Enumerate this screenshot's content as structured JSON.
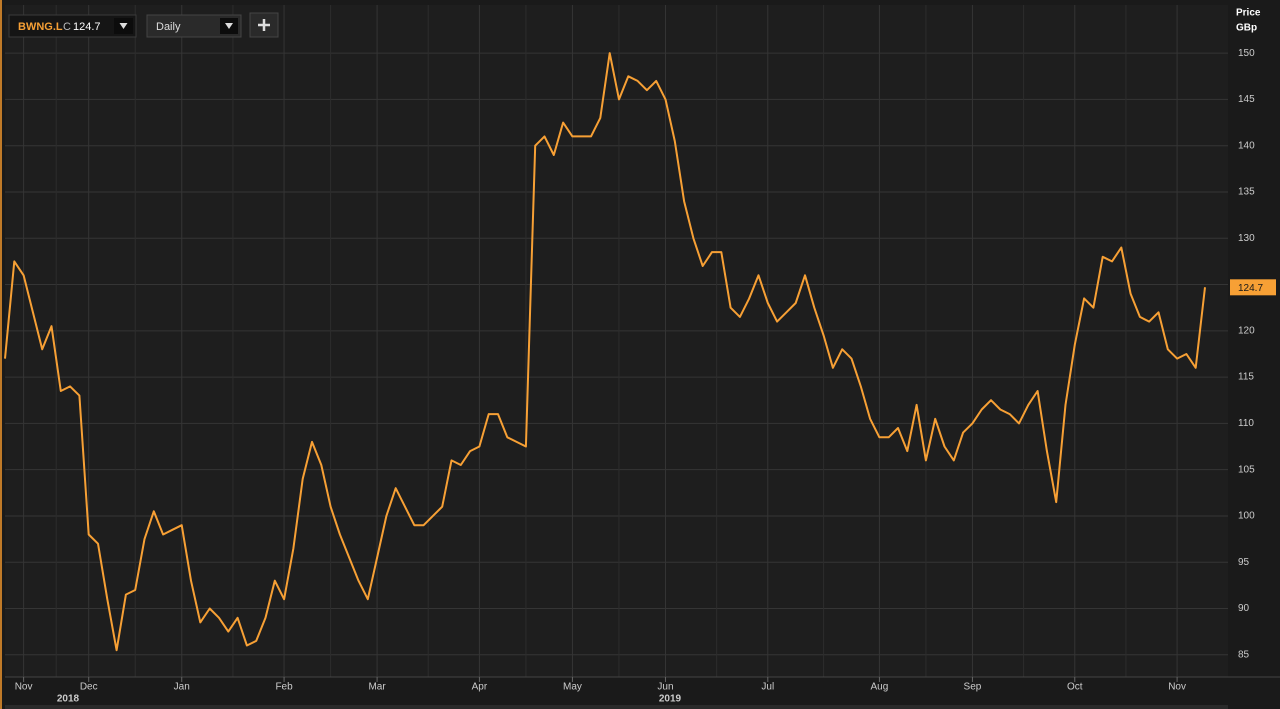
{
  "toolbar": {
    "close_prefix": "C",
    "interval": "Daily"
  },
  "chart_data": {
    "type": "line",
    "ylabel": "Price",
    "yunit": "GBp",
    "year_labels": [
      "2018",
      "2019"
    ],
    "categories": [
      null,
      null,
      "Nov",
      null,
      null,
      null,
      null,
      null,
      null,
      "Dec",
      null,
      null,
      null,
      null,
      null,
      null,
      null,
      null,
      null,
      "Jan",
      null,
      null,
      null,
      null,
      null,
      null,
      null,
      null,
      null,
      null,
      "Feb",
      null,
      null,
      null,
      null,
      null,
      null,
      null,
      null,
      null,
      "Mar",
      null,
      null,
      null,
      null,
      null,
      null,
      null,
      null,
      null,
      null,
      "Apr",
      null,
      null,
      null,
      null,
      null,
      null,
      null,
      null,
      null,
      "May",
      null,
      null,
      null,
      null,
      null,
      null,
      null,
      null,
      null,
      "Jun",
      null,
      null,
      null,
      null,
      null,
      null,
      null,
      null,
      null,
      null,
      "Jul",
      null,
      null,
      null,
      null,
      null,
      null,
      null,
      null,
      null,
      null,
      null,
      "Aug",
      null,
      null,
      null,
      null,
      null,
      null,
      null,
      null,
      null,
      "Sep",
      null,
      null,
      null,
      null,
      null,
      null,
      null,
      null,
      null,
      null,
      "Oct",
      null,
      null,
      null,
      null,
      null,
      null,
      null,
      null,
      null,
      null,
      "Nov",
      null,
      null,
      null
    ],
    "series": [
      {
        "name": "BWNG.L",
        "color": "#f7a035",
        "values": [
          117,
          127.5,
          126,
          122,
          118,
          120.5,
          113.5,
          114,
          113,
          98,
          97,
          91,
          85.5,
          91.5,
          92,
          97.5,
          100.5,
          98,
          98.5,
          99,
          93,
          88.5,
          90,
          89,
          87.5,
          89,
          86,
          86.5,
          89,
          93,
          91,
          96.5,
          104,
          108,
          105.5,
          101,
          98,
          95.5,
          93,
          91,
          95.5,
          100,
          103,
          101,
          99,
          99,
          100,
          101,
          106,
          105.5,
          107,
          107.5,
          111,
          111,
          108.5,
          108,
          107.5,
          140,
          141,
          139,
          142.5,
          141,
          141,
          141,
          143,
          150,
          145,
          147.5,
          147,
          146,
          147,
          145,
          140.5,
          134,
          130,
          127,
          128.5,
          128.5,
          122.5,
          121.5,
          123.5,
          126,
          123,
          121,
          122,
          123,
          126,
          122.5,
          119.5,
          116,
          118,
          117,
          114,
          110.5,
          108.5,
          108.5,
          109.5,
          107,
          112,
          106,
          110.5,
          107.5,
          106,
          109,
          110,
          111.5,
          112.5,
          111.5,
          111,
          110,
          112,
          113.5,
          107,
          101.5,
          112,
          118.5,
          123.5,
          122.5,
          128,
          127.5,
          129,
          124,
          121.5,
          121,
          122,
          118,
          117,
          117.5,
          116,
          124.7
        ]
      }
    ],
    "ylim": [
      82.6,
      155.2
    ],
    "yticks": [
      85,
      90,
      95,
      100,
      105,
      110,
      115,
      120,
      125,
      130,
      135,
      140,
      145,
      150
    ],
    "grid": true
  }
}
